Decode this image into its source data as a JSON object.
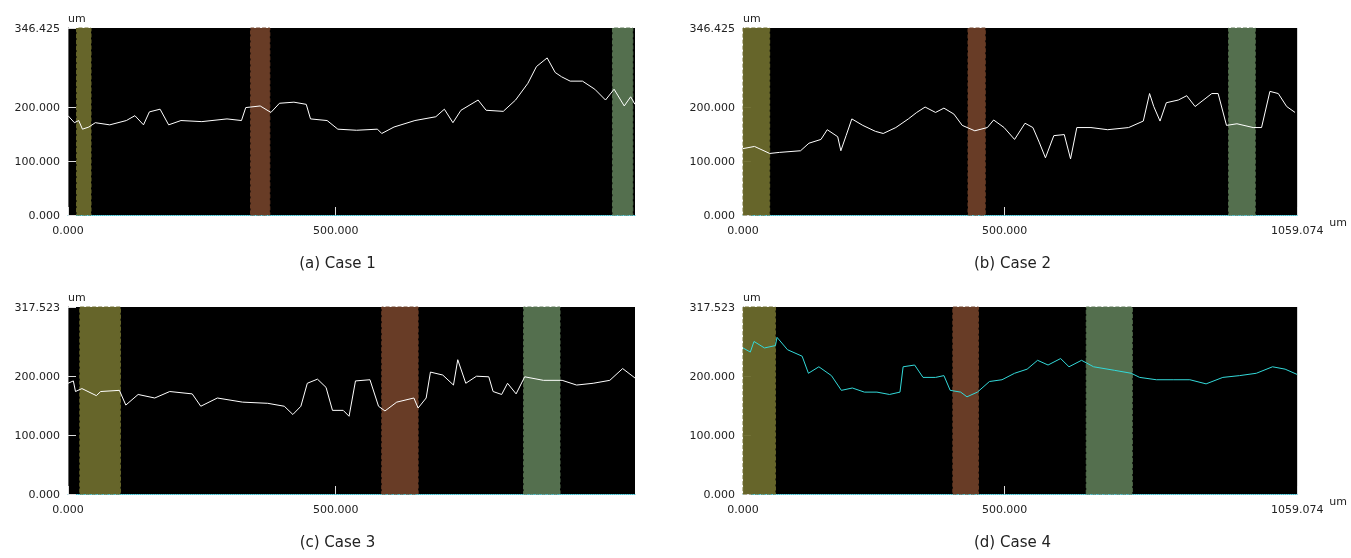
{
  "chart_data": [
    {
      "type": "line",
      "title": "(a) Case 1",
      "ylabel": "um",
      "xlim": [
        0,
        1059.074
      ],
      "ylim": [
        0,
        346.425
      ],
      "xticks": [
        {
          "value": 0,
          "label": "0.000"
        },
        {
          "value": 500,
          "label": "500.000"
        }
      ],
      "yticks": [
        {
          "value": 0,
          "label": "0.000"
        },
        {
          "value": 100,
          "label": "100.000"
        },
        {
          "value": 200,
          "label": "200.000"
        },
        {
          "value": 346.425,
          "label": "346.425"
        }
      ],
      "grid": false,
      "bands": [
        {
          "axis": "x",
          "from": 16,
          "to": 43,
          "color": "#6b6a2c"
        },
        {
          "axis": "x",
          "from": 341,
          "to": 377,
          "color": "#6e3f28"
        },
        {
          "axis": "x",
          "from": 1017,
          "to": 1055,
          "color": "#587552"
        }
      ],
      "series": [
        {
          "color": "#ffffff",
          "x": [
            0,
            12,
            20,
            27,
            39,
            51,
            78,
            109,
            125,
            141,
            152,
            172,
            188,
            211,
            250,
            297,
            324,
            332,
            359,
            379,
            395,
            422,
            445,
            453,
            484,
            504,
            539,
            578,
            586,
            609,
            648,
            687,
            703,
            719,
            734,
            766,
            781,
            813,
            836,
            859,
            875,
            895,
            910,
            922,
            938,
            961,
            984,
            1004,
            1020,
            1039,
            1051,
            1059
          ],
          "values": [
            184,
            171,
            175,
            159,
            163,
            171,
            167,
            175,
            184,
            167,
            191,
            196,
            167,
            175,
            173,
            178,
            175,
            199,
            202,
            190,
            207,
            209,
            205,
            178,
            175,
            159,
            157,
            159,
            151,
            163,
            175,
            182,
            196,
            171,
            194,
            213,
            194,
            192,
            213,
            244,
            275,
            291,
            264,
            256,
            248,
            248,
            233,
            213,
            233,
            202,
            219,
            205
          ]
        }
      ]
    },
    {
      "type": "line",
      "title": "(b) Case 2",
      "ylabel": "um",
      "xlabel": "um",
      "xlim": [
        0,
        1059.074
      ],
      "ylim": [
        0,
        346.425
      ],
      "xticks": [
        {
          "value": 0,
          "label": "0.000"
        },
        {
          "value": 500,
          "label": "500.000"
        },
        {
          "value": 1059.074,
          "label": "1059.074"
        }
      ],
      "yticks": [
        {
          "value": 0,
          "label": "0.000"
        },
        {
          "value": 100,
          "label": "100.000"
        },
        {
          "value": 200,
          "label": "200.000"
        },
        {
          "value": 346.425,
          "label": "346.425"
        }
      ],
      "grid": false,
      "bands": [
        {
          "axis": "x",
          "from": 0,
          "to": 51,
          "color": "#6b6a2c"
        },
        {
          "axis": "x",
          "from": 430,
          "to": 463,
          "color": "#6e3f28"
        },
        {
          "axis": "x",
          "from": 928,
          "to": 979,
          "color": "#587552"
        }
      ],
      "series": [
        {
          "color": "#ffffff",
          "x": [
            0,
            22,
            51,
            70,
            110,
            126,
            149,
            161,
            181,
            187,
            197,
            208,
            229,
            253,
            268,
            292,
            316,
            332,
            348,
            368,
            384,
            403,
            419,
            443,
            467,
            479,
            499,
            519,
            539,
            554,
            566,
            578,
            594,
            614,
            626,
            638,
            665,
            697,
            737,
            765,
            777,
            785,
            797,
            809,
            832,
            848,
            864,
            896,
            908,
            924,
            944,
            975,
            991,
            1007,
            1023,
            1039,
            1055
          ],
          "values": [
            123,
            127,
            114,
            116,
            119,
            133,
            140,
            158,
            145,
            119,
            147,
            178,
            166,
            155,
            151,
            162,
            178,
            190,
            200,
            190,
            198,
            187,
            166,
            156,
            162,
            176,
            162,
            140,
            170,
            162,
            135,
            106,
            147,
            149,
            104,
            162,
            162,
            158,
            162,
            174,
            225,
            201,
            174,
            208,
            213,
            221,
            201,
            225,
            225,
            166,
            169,
            162,
            162,
            229,
            225,
            201,
            190
          ]
        }
      ]
    },
    {
      "type": "line",
      "title": "(c) Case 3",
      "ylabel": "um",
      "xlim": [
        0,
        1059.074
      ],
      "ylim": [
        0,
        317.523
      ],
      "xticks": [
        {
          "value": 0,
          "label": "0.000"
        },
        {
          "value": 500,
          "label": "500.000"
        }
      ],
      "yticks": [
        {
          "value": 0,
          "label": "0.000"
        },
        {
          "value": 100,
          "label": "100.000"
        },
        {
          "value": 200,
          "label": "200.000"
        },
        {
          "value": 317.523,
          "label": "317.523"
        }
      ],
      "grid": false,
      "bands": [
        {
          "axis": "x",
          "from": 22,
          "to": 98,
          "color": "#6b6a2c"
        },
        {
          "axis": "x",
          "from": 586,
          "to": 654,
          "color": "#6e3f28"
        },
        {
          "axis": "x",
          "from": 851,
          "to": 919,
          "color": "#587552"
        }
      ],
      "series": [
        {
          "color": "#ffffff",
          "x": [
            0,
            10,
            14,
            26,
            53,
            61,
            96,
            108,
            131,
            162,
            190,
            232,
            248,
            279,
            326,
            373,
            404,
            420,
            435,
            447,
            466,
            482,
            494,
            514,
            525,
            537,
            564,
            580,
            592,
            614,
            646,
            654,
            669,
            677,
            700,
            720,
            728,
            743,
            763,
            786,
            794,
            810,
            821,
            837,
            853,
            888,
            923,
            950,
            981,
            1012,
            1036,
            1059
          ],
          "values": [
            188,
            192,
            174,
            179,
            167,
            174,
            176,
            151,
            169,
            163,
            174,
            170,
            149,
            163,
            156,
            154,
            149,
            135,
            149,
            188,
            195,
            181,
            142,
            142,
            132,
            192,
            194,
            149,
            141,
            156,
            163,
            146,
            163,
            207,
            202,
            185,
            228,
            188,
            200,
            199,
            174,
            169,
            188,
            170,
            199,
            193,
            193,
            185,
            188,
            193,
            213,
            197
          ]
        }
      ]
    },
    {
      "type": "line",
      "title": "(d) Case 4",
      "ylabel": "um",
      "xlabel": "um",
      "xlim": [
        0,
        1059.074
      ],
      "ylim": [
        0,
        317.523
      ],
      "xticks": [
        {
          "value": 0,
          "label": "0.000"
        },
        {
          "value": 500,
          "label": "500.000"
        },
        {
          "value": 1059.074,
          "label": "1059.074"
        }
      ],
      "yticks": [
        {
          "value": 0,
          "label": "0.000"
        },
        {
          "value": 100,
          "label": "100.000"
        },
        {
          "value": 200,
          "label": "200.000"
        },
        {
          "value": 317.523,
          "label": "317.523"
        }
      ],
      "grid": false,
      "bands": [
        {
          "axis": "x",
          "from": 0,
          "to": 62,
          "color": "#6b6a2c"
        },
        {
          "axis": "x",
          "from": 401,
          "to": 450,
          "color": "#6e3f28"
        },
        {
          "axis": "x",
          "from": 656,
          "to": 744,
          "color": "#587552"
        }
      ],
      "series": [
        {
          "color": "#33d9d9",
          "x": [
            0,
            14,
            21,
            41,
            62,
            65,
            85,
            113,
            125,
            145,
            169,
            188,
            209,
            232,
            256,
            280,
            300,
            306,
            328,
            344,
            368,
            384,
            396,
            416,
            428,
            448,
            471,
            495,
            519,
            543,
            563,
            583,
            607,
            623,
            647,
            670,
            710,
            742,
            758,
            790,
            822,
            854,
            885,
            917,
            949,
            981,
            1012,
            1036,
            1059
          ],
          "values": [
            248,
            241,
            259,
            248,
            252,
            266,
            245,
            234,
            205,
            216,
            201,
            176,
            180,
            173,
            173,
            169,
            173,
            216,
            219,
            198,
            198,
            201,
            176,
            173,
            165,
            173,
            191,
            194,
            205,
            212,
            227,
            219,
            230,
            216,
            227,
            216,
            210,
            205,
            198,
            194,
            194,
            194,
            187,
            198,
            201,
            205,
            216,
            212,
            203
          ]
        }
      ]
    }
  ]
}
